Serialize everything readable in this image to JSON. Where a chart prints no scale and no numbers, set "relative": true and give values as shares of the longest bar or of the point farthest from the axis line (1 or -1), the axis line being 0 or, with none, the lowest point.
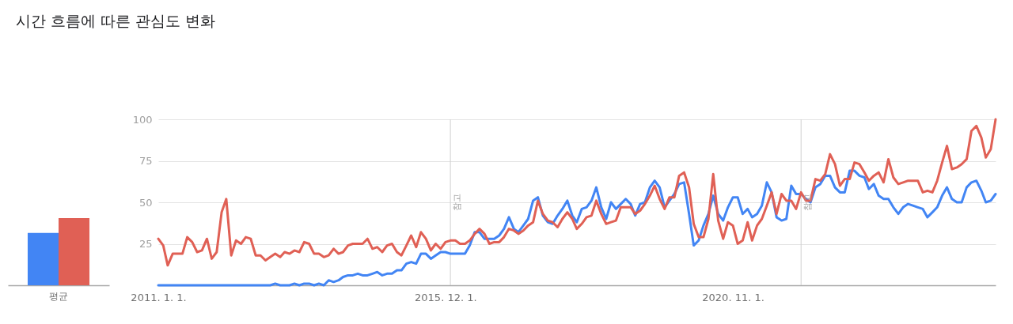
{
  "chart_data": [
    {
      "type": "bar",
      "categories": [
        "평균"
      ],
      "relative": true,
      "series": [
        {
          "color": "#4285f4",
          "values": [
            0.78
          ]
        },
        {
          "color": "#e06055",
          "values": [
            1
          ]
        }
      ]
    },
    {
      "type": "line",
      "title": "시간 흐름에 따른 관심도 변화",
      "x": [
        "2011-01",
        "2011-02",
        "2011-03",
        "2011-04",
        "2011-05",
        "2011-06",
        "2011-07",
        "2011-08",
        "2011-09",
        "2011-10",
        "2011-11",
        "2011-12",
        "2012-01",
        "2012-02",
        "2012-03",
        "2012-04",
        "2012-05",
        "2012-06",
        "2012-07",
        "2012-08",
        "2012-09",
        "2012-10",
        "2012-11",
        "2012-12",
        "2013-01",
        "2013-02",
        "2013-03",
        "2013-04",
        "2013-05",
        "2013-06",
        "2013-07",
        "2013-08",
        "2013-09",
        "2013-10",
        "2013-11",
        "2013-12",
        "2014-01",
        "2014-02",
        "2014-03",
        "2014-04",
        "2014-05",
        "2014-06",
        "2014-07",
        "2014-08",
        "2014-09",
        "2014-10",
        "2014-11",
        "2014-12",
        "2015-01",
        "2015-02",
        "2015-03",
        "2015-04",
        "2015-05",
        "2015-06",
        "2015-07",
        "2015-08",
        "2015-09",
        "2015-10",
        "2015-11",
        "2015-12",
        "2016-01",
        "2016-02",
        "2016-03",
        "2016-04",
        "2016-05",
        "2016-06",
        "2016-07",
        "2016-08",
        "2016-09",
        "2016-10",
        "2016-11",
        "2016-12",
        "2017-01",
        "2017-02",
        "2017-03",
        "2017-04",
        "2017-05",
        "2017-06",
        "2017-07",
        "2017-08",
        "2017-09",
        "2017-10",
        "2017-11",
        "2017-12",
        "2018-01",
        "2018-02",
        "2018-03",
        "2018-04",
        "2018-05",
        "2018-06",
        "2018-07",
        "2018-08",
        "2018-09",
        "2018-10",
        "2018-11",
        "2018-12",
        "2019-01",
        "2019-02",
        "2019-03",
        "2019-04",
        "2019-05",
        "2019-06",
        "2019-07",
        "2019-08",
        "2019-09",
        "2019-10",
        "2019-11",
        "2019-12",
        "2020-01",
        "2020-02",
        "2020-03",
        "2020-04",
        "2020-05",
        "2020-06",
        "2020-07",
        "2020-08",
        "2020-09",
        "2020-10",
        "2020-11",
        "2020-12",
        "2021-01",
        "2021-02",
        "2021-03",
        "2021-04",
        "2021-05",
        "2021-06",
        "2021-07",
        "2021-08",
        "2021-09",
        "2021-10",
        "2021-11",
        "2021-12",
        "2022-01",
        "2022-02",
        "2022-03",
        "2022-04",
        "2022-05",
        "2022-06",
        "2022-07",
        "2022-08",
        "2022-09",
        "2022-10",
        "2022-11",
        "2022-12",
        "2023-01",
        "2023-02",
        "2023-03",
        "2023-04",
        "2023-05",
        "2023-06",
        "2023-07",
        "2023-08",
        "2023-09",
        "2023-10",
        "2023-11",
        "2023-12",
        "2024-01",
        "2024-02",
        "2024-03",
        "2024-04",
        "2024-05",
        "2024-06",
        "2024-07",
        "2024-08",
        "2024-09",
        "2024-10",
        "2024-11",
        "2024-12",
        "2025-01",
        "2025-02",
        "2025-03",
        "2025-04",
        "2025-05"
      ],
      "series": [
        {
          "color": "#4285f4",
          "values": [
            0,
            0,
            0,
            0,
            0,
            0,
            0,
            0,
            0,
            0,
            0,
            0,
            0,
            0,
            0,
            0,
            0,
            0,
            0,
            0,
            0,
            0,
            0,
            0,
            1,
            0,
            0,
            0,
            1,
            0,
            1,
            1,
            0,
            1,
            0,
            3,
            2,
            3,
            5,
            6,
            6,
            7,
            6,
            6,
            7,
            8,
            6,
            7,
            7,
            9,
            9,
            13,
            14,
            13,
            19,
            19,
            16,
            18,
            20,
            20,
            19,
            19,
            19,
            19,
            24,
            32,
            32,
            28,
            28,
            28,
            30,
            34,
            41,
            34,
            32,
            36,
            40,
            51,
            53,
            42,
            38,
            37,
            42,
            46,
            51,
            42,
            38,
            46,
            47,
            51,
            59,
            47,
            40,
            50,
            46,
            49,
            52,
            49,
            42,
            49,
            50,
            59,
            63,
            59,
            47,
            51,
            55,
            61,
            62,
            43,
            24,
            27,
            36,
            43,
            54,
            43,
            39,
            47,
            53,
            53,
            43,
            46,
            41,
            43,
            48,
            62,
            56,
            41,
            39,
            40,
            60,
            55,
            55,
            52,
            50,
            59,
            61,
            66,
            66,
            59,
            56,
            56,
            69,
            69,
            66,
            65,
            58,
            61,
            54,
            52,
            52,
            47,
            43,
            47,
            49,
            48,
            47,
            46,
            41,
            44,
            47,
            54,
            59,
            52,
            50,
            50,
            59,
            62,
            63,
            57,
            50,
            51,
            55
          ]
        },
        {
          "color": "#e06055",
          "values": [
            28,
            24,
            12,
            19,
            19,
            19,
            29,
            26,
            20,
            21,
            28,
            16,
            20,
            44,
            52,
            18,
            27,
            25,
            29,
            28,
            18,
            18,
            15,
            17,
            19,
            17,
            20,
            19,
            21,
            20,
            26,
            25,
            19,
            19,
            17,
            18,
            22,
            19,
            20,
            24,
            25,
            25,
            25,
            28,
            22,
            23,
            20,
            24,
            25,
            20,
            18,
            24,
            30,
            23,
            32,
            28,
            21,
            25,
            22,
            26,
            27,
            27,
            25,
            25,
            27,
            31,
            34,
            31,
            25,
            26,
            26,
            29,
            34,
            33,
            31,
            33,
            36,
            38,
            51,
            43,
            39,
            38,
            35,
            40,
            44,
            40,
            34,
            37,
            41,
            42,
            51,
            43,
            37,
            38,
            39,
            47,
            47,
            47,
            43,
            45,
            49,
            54,
            60,
            52,
            46,
            53,
            53,
            66,
            68,
            59,
            37,
            29,
            29,
            40,
            67,
            39,
            28,
            38,
            36,
            25,
            27,
            38,
            27,
            36,
            40,
            48,
            56,
            43,
            55,
            51,
            51,
            46,
            56,
            51,
            51,
            64,
            63,
            67,
            79,
            73,
            60,
            64,
            64,
            74,
            73,
            68,
            63,
            66,
            68,
            62,
            76,
            65,
            61,
            62,
            63,
            63,
            63,
            56,
            57,
            56,
            63,
            74,
            84,
            70,
            71,
            73,
            76,
            93,
            96,
            89,
            77,
            82,
            100
          ]
        }
      ],
      "xlim": [
        "2011-01",
        "2025-05"
      ],
      "xticks": [
        {
          "value": "2011-01",
          "label": "2011. 1. 1."
        },
        {
          "value": "2015-12",
          "label": "2015. 12. 1."
        },
        {
          "value": "2020-11",
          "label": "2020. 11. 1."
        }
      ],
      "ylim": [
        0,
        100
      ],
      "yticks": [
        25,
        50,
        75,
        100
      ],
      "grid": "y",
      "ref_lines": [
        {
          "axis": "x",
          "value": "2016-01",
          "label": "참고"
        },
        {
          "axis": "x",
          "value": "2022-01",
          "label": "참고"
        }
      ]
    }
  ]
}
